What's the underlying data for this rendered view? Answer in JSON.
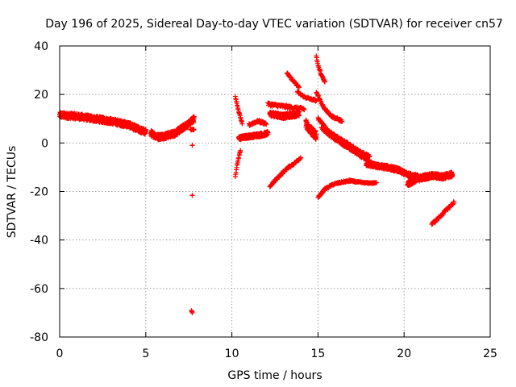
{
  "chart_data": {
    "type": "scatter",
    "title": "Day 196 of 2025, Sidereal Day-to-day VTEC variation (SDTVAR) for receiver cn57",
    "xlabel": "GPS time / hours",
    "ylabel": "SDTVAR / TECUs",
    "xlim": [
      0,
      25
    ],
    "ylim": [
      -80,
      40
    ],
    "grid": true,
    "marker": "plus",
    "color": "#ff0000",
    "xticks": [
      0,
      5,
      10,
      15,
      20,
      25
    ],
    "yticks": [
      -80,
      -60,
      -40,
      -20,
      0,
      20,
      40
    ],
    "segments": [
      {
        "x": [
          0.0,
          1.0,
          2.0,
          3.0,
          4.0,
          4.6,
          5.0
        ],
        "y": [
          11.5,
          11.0,
          10.0,
          9.0,
          7.5,
          5.5,
          4.5
        ],
        "spread": 2.4
      },
      {
        "x": [
          5.3,
          5.7,
          6.2,
          6.7,
          7.1,
          7.5,
          7.8
        ],
        "y": [
          4.0,
          2.5,
          3.0,
          4.0,
          6.0,
          8.0,
          10.0
        ],
        "spread": 2.5
      },
      {
        "x": [
          7.6,
          7.8
        ],
        "y": [
          5.5,
          5.5
        ],
        "spread": 0.5
      },
      {
        "x": [
          7.7,
          7.7
        ],
        "y": [
          -1.0,
          -1.5
        ],
        "spread": 0.3
      },
      {
        "x": [
          7.7,
          7.7
        ],
        "y": [
          -21.5,
          -22.0
        ],
        "spread": 0.3
      },
      {
        "x": [
          7.65,
          7.7
        ],
        "y": [
          -69.0,
          -70.0
        ],
        "spread": 0.3
      },
      {
        "x": [
          10.2,
          10.3,
          10.4,
          10.6
        ],
        "y": [
          19.0,
          16.0,
          13.0,
          8.0
        ],
        "spread": 0.5
      },
      {
        "x": [
          10.2,
          10.3,
          10.5
        ],
        "y": [
          -14.0,
          -9.0,
          -3.0
        ],
        "spread": 0.5
      },
      {
        "x": [
          10.4,
          10.8,
          11.3,
          11.8,
          12.1
        ],
        "y": [
          2.0,
          2.5,
          3.0,
          3.5,
          4.0
        ],
        "spread": 1.5
      },
      {
        "x": [
          11.0,
          11.5,
          12.0
        ],
        "y": [
          7.5,
          9.0,
          8.0
        ],
        "spread": 1.0
      },
      {
        "x": [
          12.1,
          12.6,
          13.1,
          13.6,
          14.2
        ],
        "y": [
          16.0,
          15.5,
          15.0,
          14.5,
          14.0
        ],
        "spread": 1.2
      },
      {
        "x": [
          12.2,
          12.6,
          13.0,
          13.5,
          13.9
        ],
        "y": [
          12.0,
          11.5,
          11.0,
          11.5,
          12.0
        ],
        "spread": 2.0
      },
      {
        "x": [
          12.2,
          12.7,
          13.2,
          13.7,
          14.0
        ],
        "y": [
          -18.0,
          -14.0,
          -10.5,
          -8.0,
          -6.0
        ],
        "spread": 0.9
      },
      {
        "x": [
          13.2,
          13.5,
          13.9
        ],
        "y": [
          29.0,
          26.0,
          23.0
        ],
        "spread": 0.8
      },
      {
        "x": [
          13.8,
          14.2,
          14.6,
          14.9
        ],
        "y": [
          21.0,
          19.0,
          18.0,
          17.5
        ],
        "spread": 0.8
      },
      {
        "x": [
          14.3,
          14.6,
          14.9
        ],
        "y": [
          8.0,
          5.0,
          3.0
        ],
        "spread": 3.5
      },
      {
        "x": [
          14.9,
          15.0,
          15.2,
          15.4
        ],
        "y": [
          36.0,
          32.0,
          28.0,
          25.0
        ],
        "spread": 0.6
      },
      {
        "x": [
          14.9,
          15.3,
          15.8,
          16.4
        ],
        "y": [
          21.0,
          15.0,
          11.0,
          9.0
        ],
        "spread": 1.0
      },
      {
        "x": [
          15.0,
          15.6,
          16.2,
          16.9,
          17.4,
          18.0
        ],
        "y": [
          10.0,
          5.0,
          2.0,
          -1.0,
          -3.5,
          -5.5
        ],
        "spread": 0.9
      },
      {
        "x": [
          15.2,
          15.8,
          16.4,
          17.0,
          17.6,
          18.3
        ],
        "y": [
          6.0,
          2.5,
          -0.5,
          -3.0,
          -6.0,
          -9.0
        ],
        "spread": 0.9
      },
      {
        "x": [
          15.0,
          15.4,
          15.9,
          16.5,
          17.0
        ],
        "y": [
          -22.5,
          -19.0,
          -17.0,
          -16.0,
          -15.5
        ],
        "spread": 0.7
      },
      {
        "x": [
          16.8,
          17.2,
          17.8,
          18.4
        ],
        "y": [
          -15.5,
          -16.0,
          -16.5,
          -16.5
        ],
        "spread": 0.5
      },
      {
        "x": [
          17.8,
          18.4,
          19.0,
          19.6,
          20.2,
          20.8
        ],
        "y": [
          -8.5,
          -9.5,
          -10.0,
          -11.0,
          -13.0,
          -14.0
        ],
        "spread": 1.8
      },
      {
        "x": [
          20.2,
          20.7,
          21.2,
          21.7,
          22.2,
          22.8
        ],
        "y": [
          -17.0,
          -15.0,
          -14.0,
          -13.5,
          -14.0,
          -13.0
        ],
        "spread": 2.2
      },
      {
        "x": [
          21.6,
          22.0,
          22.4,
          22.9
        ],
        "y": [
          -33.5,
          -31.0,
          -28.0,
          -24.5
        ],
        "spread": 1.0
      }
    ]
  }
}
